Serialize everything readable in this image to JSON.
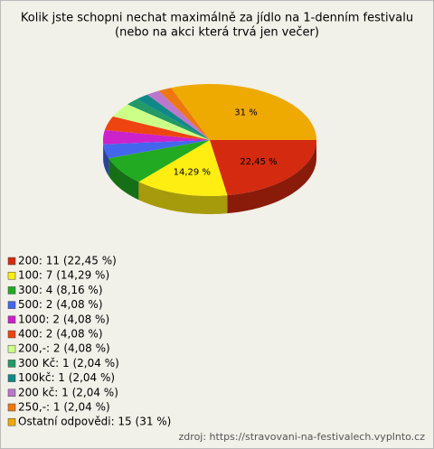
{
  "chart_data": {
    "type": "pie",
    "title": "Kolik jste schopni nechat maximálně za jídlo na 1-denním festivalu",
    "subtitle": "(nebo na akci která trvá jen večer)",
    "categories": [
      "200: 11 (22,45 %)",
      "100: 7 (14,29 %)",
      "300: 4 (8,16 %)",
      "500: 2 (4,08 %)",
      "1000: 2 (4,08 %)",
      "400: 2 (4,08 %)",
      "200,-: 2 (4,08 %)",
      "300 Kč: 1 (2,04 %)",
      "100kč: 1 (2,04 %)",
      "200 kč: 1 (2,04 %)",
      "250,-: 1 (2,04 %)",
      "Ostatní odpovědi: 15 (31 %)"
    ],
    "values": [
      22.45,
      14.29,
      8.16,
      4.08,
      4.08,
      4.08,
      4.08,
      2.04,
      2.04,
      2.04,
      2.04,
      31
    ],
    "value_labels": [
      "22,45 %",
      "14,29 %",
      null,
      null,
      null,
      null,
      null,
      null,
      null,
      null,
      null,
      "31 %"
    ],
    "colors": [
      "#d42a10",
      "#ffee11",
      "#22aa22",
      "#4466ee",
      "#cc22cc",
      "#ee4411",
      "#ccff88",
      "#229966",
      "#118888",
      "#bb77cc",
      "#ee7711",
      "#eeaa00"
    ],
    "source": "zdroj: https://stravovani-na-festivalech.vyplnto.cz"
  }
}
